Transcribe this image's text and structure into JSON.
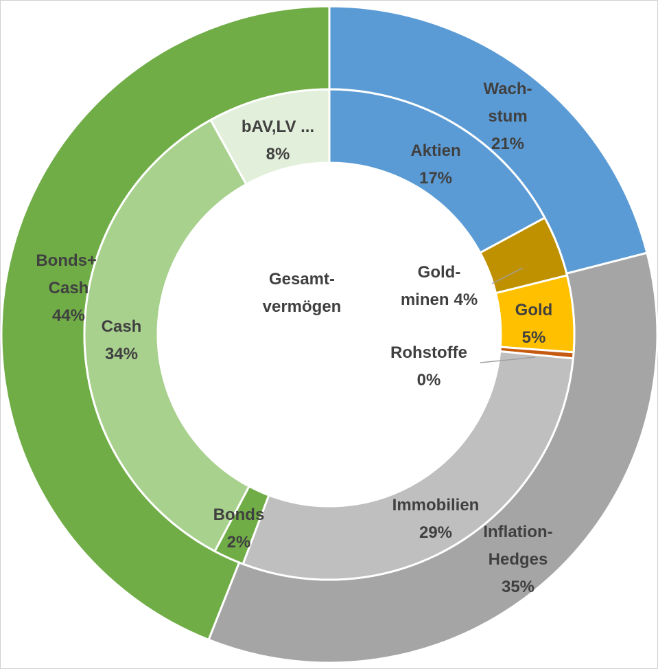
{
  "chart_data": {
    "type": "nested-donut",
    "center_label": "Gesamt-vermögen",
    "outer": {
      "categories": [
        "Wach-stum",
        "Inflation-Hedges",
        "Bonds+ Cash"
      ],
      "values": [
        21,
        35,
        44
      ],
      "value_labels": [
        "21%",
        "35%",
        "44%"
      ],
      "colors": [
        "#5b9bd5",
        "#a5a5a5",
        "#70ad47"
      ]
    },
    "inner": {
      "categories": [
        "Aktien",
        "Gold-minen",
        "Gold",
        "Rohstoffe",
        "Immobilien",
        "Bonds",
        "Cash",
        "bAV,LV ..."
      ],
      "values": [
        17,
        4,
        5,
        0.4,
        29,
        2,
        34,
        8
      ],
      "value_labels": [
        "17%",
        "4%",
        "5%",
        "0%",
        "29%",
        "2%",
        "34%",
        "8%"
      ],
      "colors": [
        "#5b9bd5",
        "#bf9000",
        "#ffc000",
        "#c55a11",
        "#bfbfbf",
        "#70ad47",
        "#a9d18e",
        "#e2efda"
      ]
    }
  }
}
